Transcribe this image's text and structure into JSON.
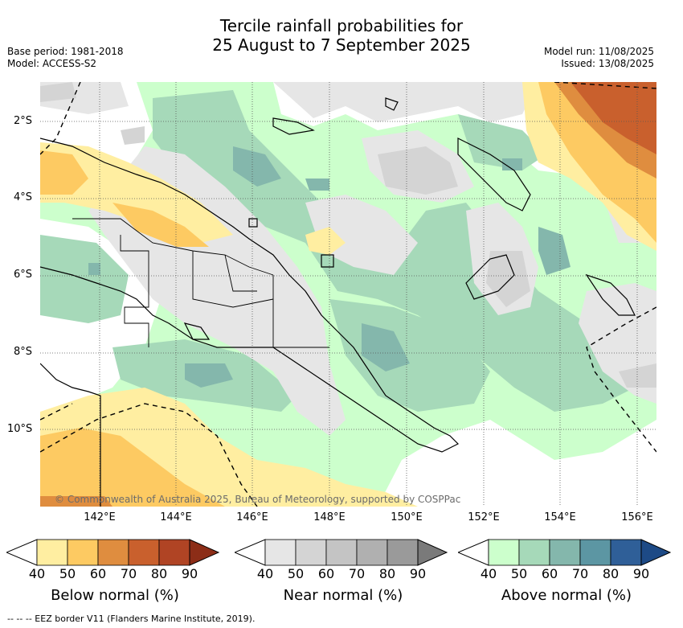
{
  "title_line1": "Tercile rainfall probabilities for",
  "title_line2": "25 August to 7 September 2025",
  "base_period": "Base period: 1981-2018",
  "model": "Model: ACCESS-S2",
  "model_run": "Model run: 11/08/2025",
  "issued": "Issued: 13/08/2025",
  "copyright": "© Commonwealth of Australia 2025, Bureau of Meteorology, supported by COSPPac",
  "lat_labels": [
    "2°S",
    "4°S",
    "6°S",
    "8°S",
    "10°S"
  ],
  "lon_labels": [
    "142°E",
    "144°E",
    "146°E",
    "148°E",
    "150°E",
    "152°E",
    "154°E",
    "156°E"
  ],
  "legends": [
    {
      "caption": "Below normal (%)",
      "ticks": [
        "40",
        "50",
        "60",
        "70",
        "80",
        "90"
      ],
      "colors": [
        "#ffeea1",
        "#fdca62",
        "#df8d3f",
        "#c9602d",
        "#b04424",
        "#8c2d17"
      ]
    },
    {
      "caption": "Near normal (%)",
      "ticks": [
        "40",
        "50",
        "60",
        "70",
        "80",
        "90"
      ],
      "colors": [
        "#e6e6e6",
        "#d4d4d4",
        "#c4c4c4",
        "#b0b0b0",
        "#9a9a9a",
        "#7a7a7a"
      ]
    },
    {
      "caption": "Above normal (%)",
      "ticks": [
        "40",
        "50",
        "60",
        "70",
        "80",
        "90"
      ],
      "colors": [
        "#ccffcc",
        "#a6d9b9",
        "#84b7ac",
        "#5c96a3",
        "#2f5f98",
        "#1d4a86"
      ]
    }
  ],
  "footer": "--  --  -- EEZ border V11 (Flanders Marine Institute, 2019)."
}
